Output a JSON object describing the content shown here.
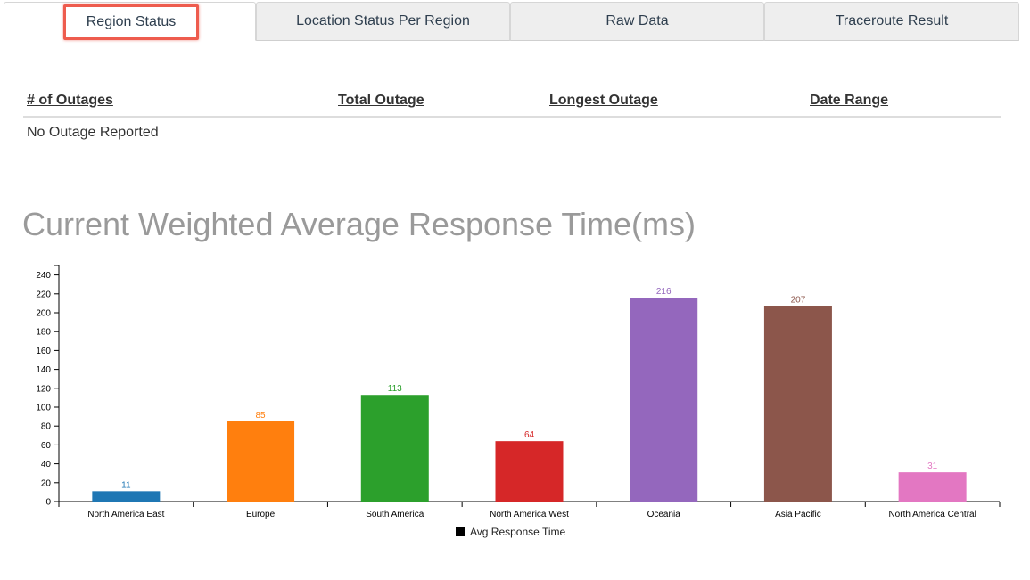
{
  "tabs": [
    {
      "label": "Region Status",
      "active": true
    },
    {
      "label": "Location Status Per Region",
      "active": false
    },
    {
      "label": "Raw Data",
      "active": false
    },
    {
      "label": "Traceroute Result",
      "active": false
    }
  ],
  "outage_table": {
    "headers": [
      "# of Outages",
      "Total Outage",
      "Longest Outage",
      "Date Range"
    ],
    "empty_message": "No Outage Reported"
  },
  "chart_title": "Current Weighted Average Response Time(ms)",
  "chart_data": {
    "type": "bar",
    "categories": [
      "North America East",
      "Europe",
      "South America",
      "North America West",
      "Oceania",
      "Asia Pacific",
      "North America Central"
    ],
    "values": [
      11,
      85,
      113,
      64,
      216,
      207,
      31
    ],
    "colors": [
      "#1f77b4",
      "#ff7f0e",
      "#2ca02c",
      "#d62728",
      "#9467bd",
      "#8c564b",
      "#e377c2"
    ],
    "yticks": [
      0,
      20,
      40,
      60,
      80,
      100,
      120,
      140,
      160,
      180,
      200,
      220,
      240
    ],
    "ylim": [
      0,
      250
    ],
    "legend": "Avg Response Time",
    "legend_position": "bottom"
  }
}
